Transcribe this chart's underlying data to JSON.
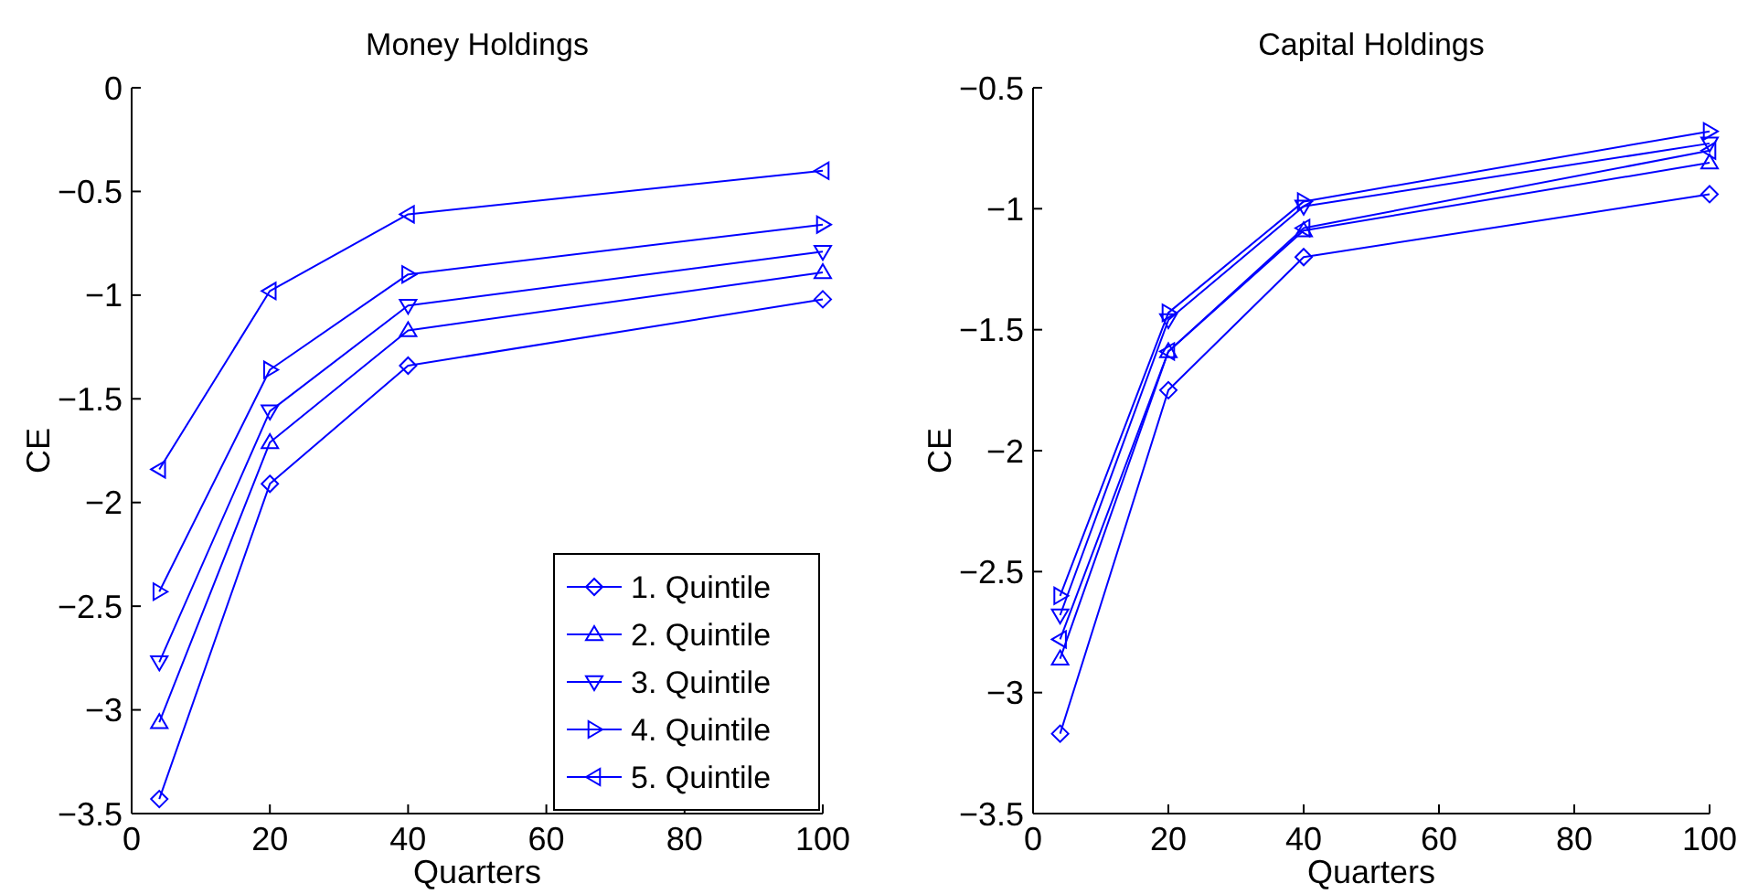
{
  "chart_data": [
    {
      "type": "line",
      "title": "Money Holdings",
      "xlabel": "Quarters",
      "ylabel": "CE",
      "x": [
        4,
        20,
        40,
        100
      ],
      "xlim": [
        0,
        100
      ],
      "xticks": [
        0,
        20,
        40,
        60,
        80,
        100
      ],
      "ylim": [
        -3.5,
        0
      ],
      "yticks": [
        -3.5,
        -3,
        -2.5,
        -2,
        -1.5,
        -1,
        -0.5,
        0
      ],
      "grid": false,
      "legend": "bottom right",
      "line_style": "solid",
      "series": [
        {
          "name": "1. Quintile",
          "color": "#0000ff",
          "marker": "diamond",
          "values": [
            -3.43,
            -1.91,
            -1.34,
            -1.02
          ]
        },
        {
          "name": "2. Quintile",
          "color": "#0000ff",
          "marker": "triangle-up",
          "values": [
            -3.06,
            -1.71,
            -1.17,
            -0.89
          ]
        },
        {
          "name": "3. Quintile",
          "color": "#0000ff",
          "marker": "triangle-down",
          "values": [
            -2.77,
            -1.56,
            -1.05,
            -0.79
          ]
        },
        {
          "name": "4. Quintile",
          "color": "#0000ff",
          "marker": "triangle-right",
          "values": [
            -2.43,
            -1.36,
            -0.9,
            -0.66
          ]
        },
        {
          "name": "5. Quintile",
          "color": "#0000ff",
          "marker": "triangle-left",
          "values": [
            -1.84,
            -0.98,
            -0.61,
            -0.4
          ]
        }
      ]
    },
    {
      "type": "line",
      "title": "Capital Holdings",
      "xlabel": "Quarters",
      "ylabel": "CE",
      "x": [
        4,
        20,
        40,
        100
      ],
      "xlim": [
        0,
        100
      ],
      "xticks": [
        0,
        20,
        40,
        60,
        80,
        100
      ],
      "ylim": [
        -3.5,
        -0.5
      ],
      "yticks": [
        -3.5,
        -3,
        -2.5,
        -2,
        -1.5,
        -1,
        -0.5
      ],
      "grid": false,
      "line_style": "solid",
      "series": [
        {
          "color": "#0000ff",
          "marker": "diamond",
          "values": [
            -3.17,
            -1.75,
            -1.2,
            -0.94
          ]
        },
        {
          "color": "#0000ff",
          "marker": "triangle-up",
          "values": [
            -2.86,
            -1.59,
            -1.09,
            -0.81
          ]
        },
        {
          "color": "#0000ff",
          "marker": "triangle-down",
          "values": [
            -2.68,
            -1.46,
            -0.99,
            -0.73
          ]
        },
        {
          "color": "#0000ff",
          "marker": "triangle-right",
          "values": [
            -2.6,
            -1.43,
            -0.97,
            -0.68
          ]
        },
        {
          "color": "#0000ff",
          "marker": "triangle-left",
          "values": [
            -2.78,
            -1.59,
            -1.08,
            -0.76
          ]
        }
      ]
    }
  ]
}
